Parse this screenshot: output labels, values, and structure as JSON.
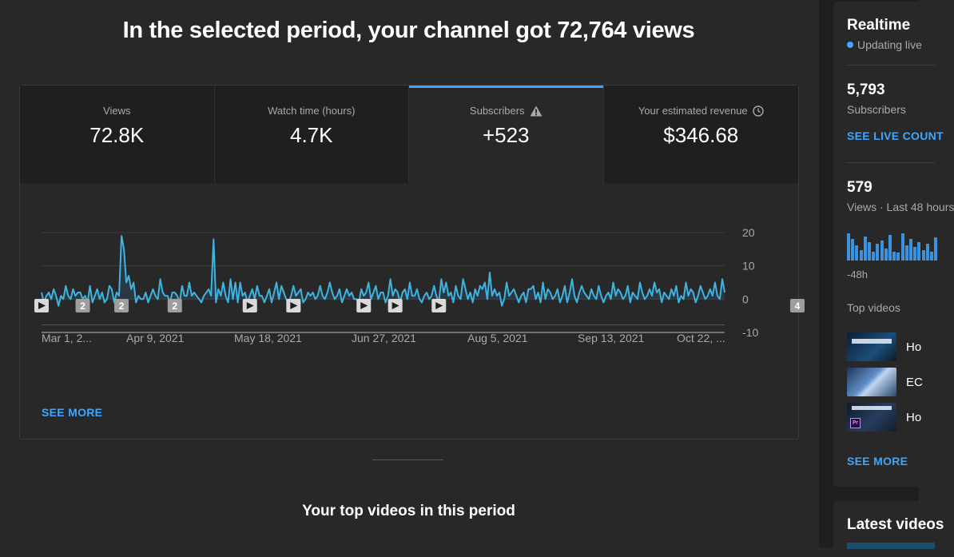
{
  "headline": "In the selected period, your channel got 72,764 views",
  "tabs": [
    {
      "label": "Views",
      "value": "72.8K",
      "icon": null
    },
    {
      "label": "Watch time (hours)",
      "value": "4.7K",
      "icon": null
    },
    {
      "label": "Subscribers",
      "value": "+523",
      "icon": "warning-icon"
    },
    {
      "label": "Your estimated revenue",
      "value": "$346.68",
      "icon": "clock-icon"
    }
  ],
  "active_tab": 2,
  "chart_data": {
    "type": "line",
    "series": [
      {
        "values": [
          2,
          -1,
          1,
          2,
          0,
          3,
          1,
          -2,
          1,
          0,
          4,
          1,
          0,
          3,
          1,
          2,
          2,
          0,
          1,
          -1,
          4,
          -1,
          1,
          3,
          0,
          2,
          -1,
          0,
          4,
          3,
          -1,
          2,
          1,
          19,
          15,
          5,
          7,
          3,
          5,
          -1,
          1,
          0,
          0,
          2,
          -1,
          1,
          3,
          1,
          0,
          6,
          2,
          1,
          1,
          -1,
          2,
          2,
          1,
          -1,
          4,
          1,
          1,
          5,
          1,
          2,
          1,
          0,
          -1,
          1,
          2,
          3,
          1,
          18,
          -1,
          3,
          1,
          5,
          1,
          -1,
          6,
          0,
          5,
          -1,
          5,
          1,
          2,
          -1,
          1,
          3,
          0,
          4,
          1,
          1,
          -1,
          1,
          3,
          -1,
          2,
          5,
          0,
          4,
          2,
          0,
          -1,
          1,
          4,
          1,
          2,
          3,
          -1,
          0,
          2,
          1,
          2,
          0,
          1,
          4,
          1,
          0,
          2,
          5,
          2,
          0,
          1,
          3,
          -1,
          1,
          3,
          1,
          2,
          0,
          0,
          -1,
          3,
          1,
          2,
          5,
          0,
          2,
          4,
          0,
          2,
          2,
          -1,
          1,
          6,
          1,
          3,
          2,
          -1,
          2,
          3,
          0,
          5,
          1,
          1,
          3,
          0,
          -1,
          1,
          2,
          0,
          1,
          4,
          1,
          -1,
          6,
          2,
          5,
          1,
          2,
          -1,
          4,
          1,
          0,
          6,
          3,
          0,
          2,
          -1,
          3,
          1,
          4,
          3,
          5,
          0,
          8,
          1,
          3,
          1,
          2,
          -2,
          0,
          5,
          1,
          2,
          3,
          1,
          -1,
          1,
          2,
          -1,
          3,
          3,
          4,
          0,
          2,
          -1,
          5,
          0,
          3,
          2,
          0,
          1,
          3,
          -1,
          1,
          4,
          -1,
          2,
          6,
          1,
          -1,
          2,
          4,
          2,
          1,
          0,
          3,
          1,
          0,
          4,
          1,
          -1,
          1,
          2,
          0,
          5,
          1,
          3,
          2,
          0,
          1,
          4,
          -1,
          2,
          1,
          0,
          5,
          2,
          0,
          1,
          3,
          1,
          5,
          2,
          3,
          -1,
          2,
          1,
          0,
          3,
          1,
          4,
          -1,
          1,
          0,
          5,
          1,
          3,
          2,
          -1,
          1,
          4,
          2,
          0,
          1,
          3,
          1,
          5,
          1,
          0,
          6,
          2
        ]
      }
    ],
    "x_ticks": [
      "Mar 1, 2...",
      "Apr 9, 2021",
      "May 18, 2021",
      "Jun 27, 2021",
      "Aug 5, 2021",
      "Sep 13, 2021",
      "Oct 22, ..."
    ],
    "y_ticks": [
      "20",
      "10",
      "0",
      "-10"
    ],
    "ylim": [
      -10,
      20
    ],
    "grid": true,
    "markers": [
      {
        "kind": "play",
        "index": 0
      },
      {
        "kind": "count",
        "label": "2",
        "index": 17
      },
      {
        "kind": "count",
        "label": "2",
        "index": 33
      },
      {
        "kind": "count",
        "label": "2",
        "index": 55
      },
      {
        "kind": "play",
        "index": 86
      },
      {
        "kind": "play",
        "index": 104
      },
      {
        "kind": "play",
        "index": 133
      },
      {
        "kind": "play",
        "index": 146
      },
      {
        "kind": "play",
        "index": 164
      },
      {
        "kind": "count",
        "label": "4",
        "index": 312
      },
      {
        "kind": "play",
        "index": 328
      },
      {
        "kind": "play",
        "index": 340
      }
    ]
  },
  "see_more_label": "SEE MORE",
  "top_videos_title": "Your top videos in this period",
  "sidebar": {
    "realtime_title": "Realtime",
    "updating_label": "Updating live",
    "subscribers_value": "5,793",
    "subscribers_label": "Subscribers",
    "live_count_link": "SEE LIVE COUNT",
    "views_value": "579",
    "views_label": "Views · Last 48 hours",
    "mini_bars": [
      0.9,
      0.7,
      0.5,
      0.35,
      0.8,
      0.6,
      0.3,
      0.55,
      0.65,
      0.4,
      0.85,
      0.3,
      0.25,
      0.9,
      0.5,
      0.7,
      0.45,
      0.6,
      0.35,
      0.55,
      0.3,
      0.75
    ],
    "mini_axis_label": "-48h",
    "top_videos_label": "Top videos",
    "videos": [
      {
        "title": "Ho",
        "thumb": "t1"
      },
      {
        "title": "EC",
        "thumb": "t2"
      },
      {
        "title": "Ho",
        "thumb": "t3"
      }
    ],
    "see_more_label": "SEE MORE",
    "latest_title": "Latest videos"
  }
}
